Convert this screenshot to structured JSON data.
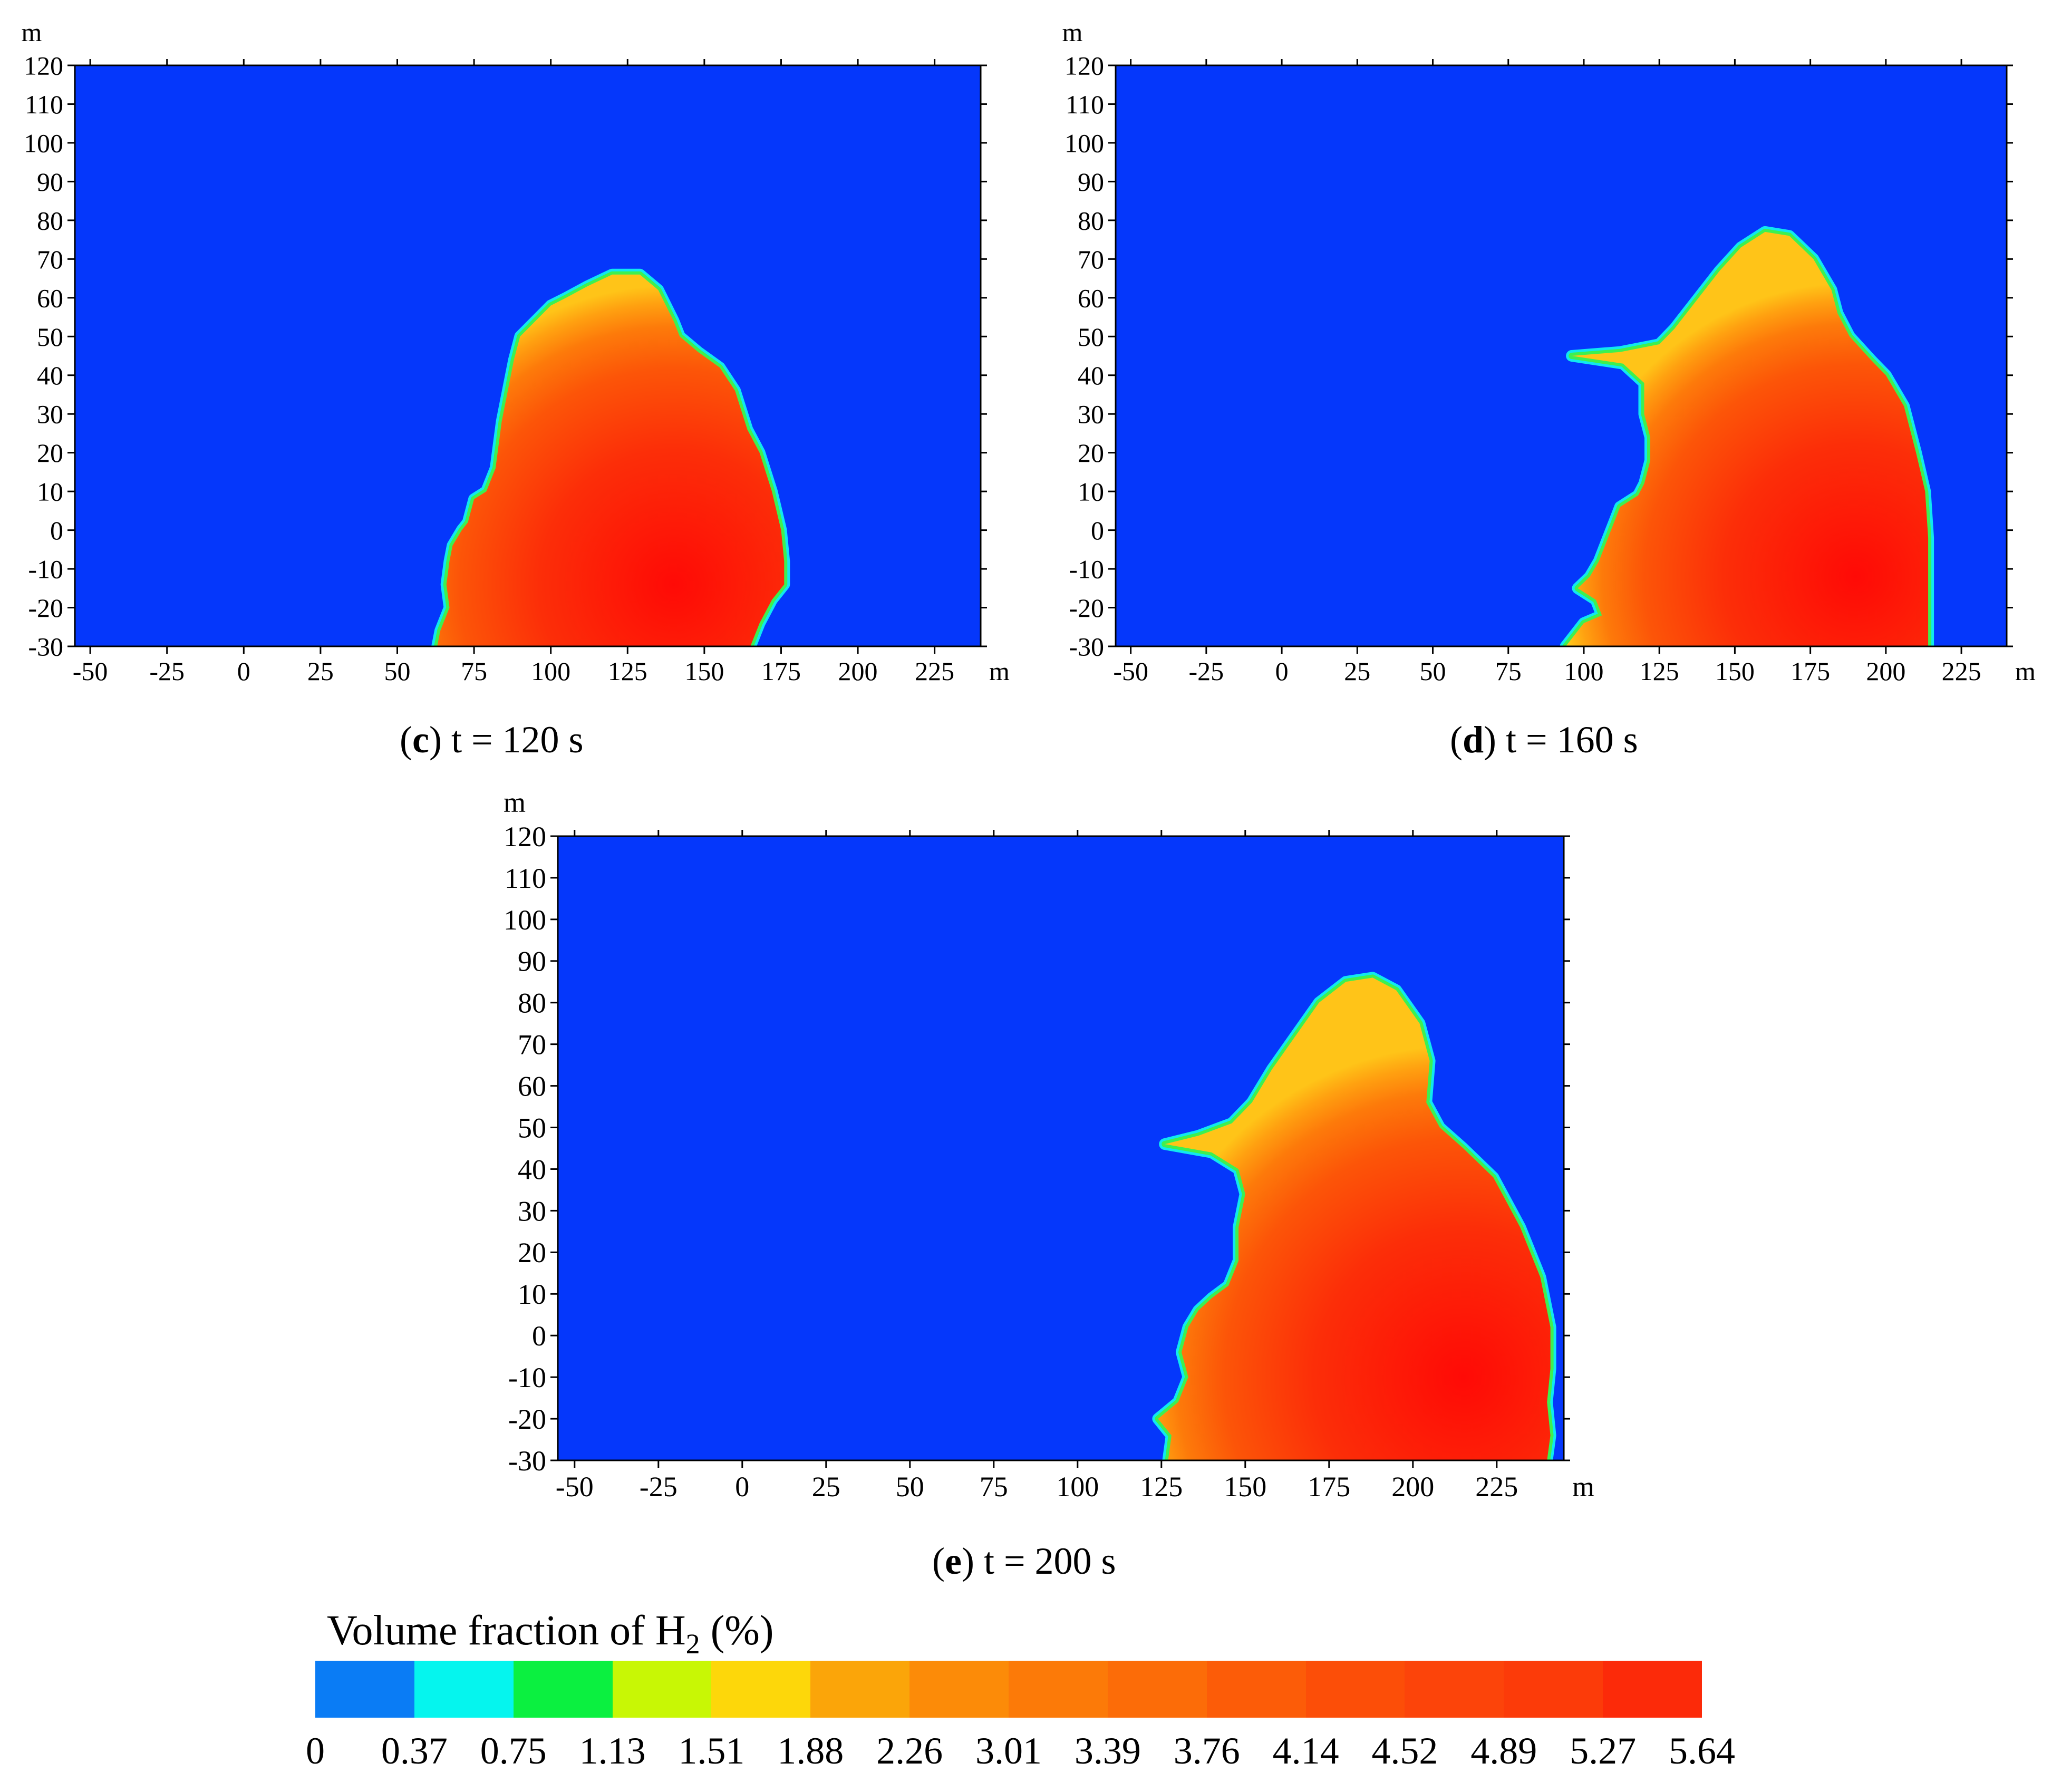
{
  "chart_data": [
    {
      "type": "heatmap",
      "panel_label": "c",
      "caption_rest": " t = 120 s",
      "xlabel": "m",
      "ylabel": "m",
      "xlim": [
        -55,
        240
      ],
      "ylim": [
        -30,
        120
      ],
      "x_ticks": [
        "-50",
        "-25",
        "0",
        "25",
        "50",
        "75",
        "100",
        "125",
        "150",
        "175",
        "200",
        "225"
      ],
      "y_ticks": [
        "120",
        "110",
        "100",
        "90",
        "80",
        "70",
        "60",
        "50",
        "40",
        "30",
        "20",
        "10",
        "0",
        "-10",
        "-20",
        "-30"
      ],
      "background_color": "#0537fb",
      "plume_outline": [
        [
          63,
          -30
        ],
        [
          64,
          -26
        ],
        [
          67,
          -20
        ],
        [
          66,
          -14
        ],
        [
          67,
          -8
        ],
        [
          68,
          -4
        ],
        [
          71,
          0
        ],
        [
          73,
          2
        ],
        [
          75,
          8
        ],
        [
          79,
          10
        ],
        [
          82,
          16
        ],
        [
          84,
          28
        ],
        [
          86,
          36
        ],
        [
          88,
          44
        ],
        [
          90,
          50
        ],
        [
          95,
          54
        ],
        [
          100,
          58
        ],
        [
          105,
          60
        ],
        [
          112,
          63
        ],
        [
          120,
          66
        ],
        [
          129,
          66
        ],
        [
          135,
          62
        ],
        [
          140,
          54
        ],
        [
          142,
          50
        ],
        [
          148,
          46
        ],
        [
          155,
          42
        ],
        [
          160,
          36
        ],
        [
          164,
          26
        ],
        [
          168,
          20
        ],
        [
          172,
          10
        ],
        [
          175,
          0
        ],
        [
          176,
          -8
        ],
        [
          176,
          -14
        ],
        [
          172,
          -18
        ],
        [
          168,
          -24
        ],
        [
          165,
          -30
        ]
      ],
      "hotspot": [
        140,
        -14
      ]
    },
    {
      "type": "heatmap",
      "panel_label": "d",
      "caption_rest": " t = 160 s",
      "xlabel": "m",
      "ylabel": "m",
      "xlim": [
        -55,
        240
      ],
      "ylim": [
        -30,
        120
      ],
      "x_ticks": [
        "-50",
        "-25",
        "0",
        "25",
        "50",
        "75",
        "100",
        "125",
        "150",
        "175",
        "200",
        "225"
      ],
      "y_ticks": [
        "120",
        "110",
        "100",
        "90",
        "80",
        "70",
        "60",
        "50",
        "40",
        "30",
        "20",
        "10",
        "0",
        "-10",
        "-20",
        "-30"
      ],
      "background_color": "#0537fb",
      "plume_outline": [
        [
          94,
          -30
        ],
        [
          100,
          -24
        ],
        [
          106,
          -22
        ],
        [
          104,
          -18
        ],
        [
          98,
          -15
        ],
        [
          102,
          -12
        ],
        [
          105,
          -8
        ],
        [
          108,
          -2
        ],
        [
          110,
          2
        ],
        [
          112,
          6
        ],
        [
          118,
          9
        ],
        [
          120,
          12
        ],
        [
          122,
          18
        ],
        [
          122,
          24
        ],
        [
          120,
          30
        ],
        [
          120,
          38
        ],
        [
          113,
          43
        ],
        [
          96,
          45
        ],
        [
          112,
          46
        ],
        [
          125,
          48
        ],
        [
          130,
          52
        ],
        [
          138,
          60
        ],
        [
          145,
          67
        ],
        [
          152,
          73
        ],
        [
          160,
          77
        ],
        [
          168,
          76
        ],
        [
          176,
          70
        ],
        [
          182,
          62
        ],
        [
          184,
          56
        ],
        [
          188,
          50
        ],
        [
          195,
          44
        ],
        [
          200,
          40
        ],
        [
          206,
          32
        ],
        [
          210,
          20
        ],
        [
          213,
          10
        ],
        [
          214,
          -2
        ],
        [
          214,
          -12
        ],
        [
          214,
          -22
        ],
        [
          214,
          -30
        ]
      ],
      "hotspot": [
        190,
        -12
      ]
    },
    {
      "type": "heatmap",
      "panel_label": "e",
      "caption_rest": " t = 200 s",
      "xlabel": "m",
      "ylabel": "m",
      "xlim": [
        -55,
        245
      ],
      "ylim": [
        -30,
        120
      ],
      "x_ticks": [
        "-50",
        "-25",
        "0",
        "25",
        "50",
        "75",
        "100",
        "125",
        "150",
        "175",
        "200",
        "225"
      ],
      "y_ticks": [
        "120",
        "110",
        "100",
        "90",
        "80",
        "70",
        "60",
        "50",
        "40",
        "30",
        "20",
        "10",
        "0",
        "-10",
        "-20",
        "-30"
      ],
      "background_color": "#0537fb",
      "plume_outline": [
        [
          127,
          -30
        ],
        [
          128,
          -24
        ],
        [
          124,
          -20
        ],
        [
          130,
          -16
        ],
        [
          133,
          -10
        ],
        [
          131,
          -4
        ],
        [
          133,
          2
        ],
        [
          136,
          6
        ],
        [
          140,
          9
        ],
        [
          145,
          12
        ],
        [
          148,
          18
        ],
        [
          148,
          26
        ],
        [
          150,
          34
        ],
        [
          148,
          40
        ],
        [
          140,
          44
        ],
        [
          126,
          46
        ],
        [
          136,
          48
        ],
        [
          146,
          51
        ],
        [
          152,
          56
        ],
        [
          158,
          64
        ],
        [
          165,
          72
        ],
        [
          172,
          80
        ],
        [
          180,
          85
        ],
        [
          188,
          86
        ],
        [
          195,
          83
        ],
        [
          202,
          75
        ],
        [
          205,
          66
        ],
        [
          204,
          56
        ],
        [
          208,
          50
        ],
        [
          215,
          45
        ],
        [
          224,
          38
        ],
        [
          232,
          26
        ],
        [
          238,
          14
        ],
        [
          241,
          2
        ],
        [
          241,
          -8
        ],
        [
          240,
          -16
        ],
        [
          241,
          -24
        ],
        [
          240,
          -30
        ]
      ],
      "hotspot": [
        215,
        -10
      ]
    }
  ],
  "legend": {
    "title_main": "Volume fraction of H",
    "title_sub": "2",
    "title_tail": " (%)",
    "colors": [
      "#0a7cf5",
      "#05f5ee",
      "#0bf040",
      "#c8f705",
      "#fdd70a",
      "#fba509",
      "#fc8b08",
      "#fc7a08",
      "#fc6c08",
      "#fc5c08",
      "#fc4e08",
      "#fc440a",
      "#fc3b09",
      "#fc2a09"
    ],
    "labels": [
      "0",
      "0.37",
      "0.75",
      "1.13",
      "1.51",
      "1.88",
      "2.26",
      "3.01",
      "3.39",
      "3.76",
      "4.14",
      "4.52",
      "4.89",
      "5.27",
      "5.64"
    ]
  }
}
